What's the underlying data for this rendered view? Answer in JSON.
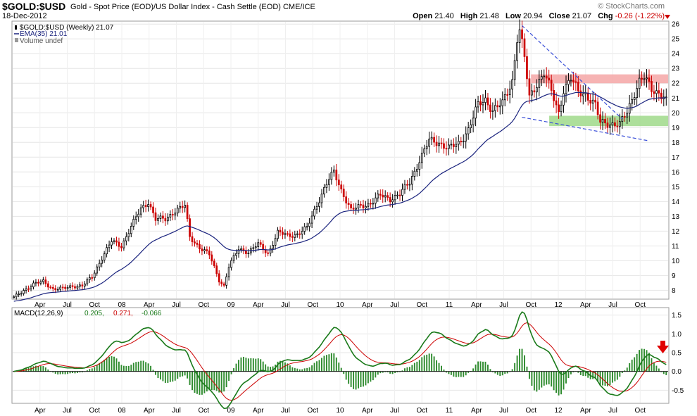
{
  "header": {
    "symbol": "$GOLD:$USD",
    "description": "Gold - Spot Price (EOD)/US Dollar Index - Cash Settle (EOD)  CME/ICE",
    "date": "18-Dec-2012",
    "brand": "© StockCharts.com",
    "open_label": "Open",
    "open": "21.40",
    "high_label": "High",
    "high": "21.48",
    "low_label": "Low",
    "low": "20.94",
    "close_label": "Close",
    "close": "21.07",
    "chg_label": "Chg",
    "chg": "-0.26 (-1.22%)"
  },
  "legend": {
    "price": "$GOLD:$USD (Weekly) 21.07",
    "ema": "EMA(35) 21.01",
    "volume": "Volume undef"
  },
  "macd_legend": {
    "label": "MACD(12,26,9)",
    "macd": "0.205,",
    "signal": "0.271,",
    "hist": "-0.066"
  },
  "colors": {
    "up": "#000000",
    "down": "#cc0000",
    "ema": "#1a237e",
    "macd": "#1a7a1a",
    "signal": "#cc0000",
    "hist": "#2e8b2e",
    "resistance_zone": "#f4a6a6",
    "support_zone": "#9fd98a",
    "trendline": "#3a4fd8",
    "arrow": "#e00000"
  },
  "chart_data": [
    {
      "type": "candlestick",
      "title": "$GOLD:$USD (Weekly)",
      "y_axis_side": "right",
      "ylim": [
        7.4,
        26.2
      ],
      "y_ticks": [
        8,
        9,
        10,
        11,
        12,
        13,
        14,
        15,
        16,
        17,
        18,
        19,
        20,
        21,
        22,
        23,
        24,
        25,
        26
      ],
      "x_tick_labels": [
        "Apr",
        "Jul",
        "Oct",
        "08",
        "Apr",
        "Jul",
        "Oct",
        "09",
        "Apr",
        "Jul",
        "Oct",
        "10",
        "Apr",
        "Jul",
        "Oct",
        "11",
        "Apr",
        "Jul",
        "Oct",
        "12",
        "Apr",
        "Jul",
        "Oct"
      ],
      "x_range": [
        "2007-01",
        "2012-12"
      ],
      "grid": true,
      "anchors": [
        [
          0,
          7.5
        ],
        [
          4,
          8.0
        ],
        [
          8,
          8.4
        ],
        [
          12,
          8.6
        ],
        [
          16,
          8.1
        ],
        [
          20,
          8.1
        ],
        [
          24,
          8.3
        ],
        [
          28,
          8.3
        ],
        [
          32,
          8.9
        ],
        [
          36,
          10.2
        ],
        [
          40,
          11.3
        ],
        [
          44,
          11.0
        ],
        [
          48,
          12.3
        ],
        [
          52,
          13.5
        ],
        [
          55,
          14.0
        ],
        [
          58,
          12.8
        ],
        [
          62,
          12.8
        ],
        [
          66,
          13.4
        ],
        [
          70,
          13.7
        ],
        [
          72,
          11.6
        ],
        [
          76,
          10.9
        ],
        [
          80,
          10.4
        ],
        [
          84,
          8.7
        ],
        [
          86,
          8.3
        ],
        [
          88,
          9.6
        ],
        [
          92,
          10.8
        ],
        [
          96,
          10.6
        ],
        [
          100,
          11.1
        ],
        [
          104,
          10.5
        ],
        [
          108,
          11.9
        ],
        [
          112,
          11.7
        ],
        [
          116,
          11.8
        ],
        [
          120,
          12.2
        ],
        [
          124,
          13.8
        ],
        [
          128,
          15.2
        ],
        [
          131,
          16.0
        ],
        [
          134,
          14.8
        ],
        [
          138,
          13.4
        ],
        [
          142,
          13.7
        ],
        [
          146,
          13.9
        ],
        [
          150,
          14.4
        ],
        [
          154,
          14.2
        ],
        [
          158,
          14.5
        ],
        [
          162,
          15.3
        ],
        [
          166,
          16.8
        ],
        [
          170,
          18.1
        ],
        [
          174,
          18.0
        ],
        [
          178,
          17.6
        ],
        [
          182,
          17.9
        ],
        [
          186,
          18.9
        ],
        [
          190,
          20.5
        ],
        [
          193,
          20.9
        ],
        [
          196,
          20.2
        ],
        [
          200,
          20.6
        ],
        [
          204,
          22.2
        ],
        [
          206,
          25.1
        ],
        [
          207,
          25.6
        ],
        [
          209,
          23.7
        ],
        [
          211,
          21.0
        ],
        [
          214,
          22.0
        ],
        [
          217,
          22.7
        ],
        [
          220,
          21.4
        ],
        [
          223,
          20.0
        ],
        [
          225,
          21.6
        ],
        [
          228,
          22.3
        ],
        [
          231,
          21.4
        ],
        [
          234,
          21.3
        ],
        [
          238,
          20.5
        ],
        [
          240,
          19.3
        ],
        [
          244,
          19.3
        ],
        [
          248,
          19.2
        ],
        [
          251,
          20.0
        ],
        [
          254,
          21.4
        ],
        [
          256,
          22.2
        ],
        [
          258,
          22.4
        ],
        [
          261,
          21.5
        ],
        [
          264,
          21.4
        ],
        [
          267,
          21.07
        ]
      ],
      "ema_label": "EMA(35)",
      "ema_last": 21.01,
      "resistance_zone": [
        22.0,
        22.6
      ],
      "support_zone": [
        19.1,
        19.8
      ],
      "trendline_upper": [
        [
          "2011-09",
          25.9
        ],
        [
          "2012-08",
          19.6
        ]
      ],
      "trendline_lower": [
        [
          "2011-09",
          19.7
        ],
        [
          "2012-11",
          18.1
        ]
      ]
    },
    {
      "type": "line",
      "title": "MACD(12,26,9)",
      "ylim": [
        -0.85,
        1.7
      ],
      "y_ticks": [
        -0.5,
        0.0,
        0.5,
        1.0,
        1.5
      ],
      "series": [
        {
          "name": "MACD(12,26,9)",
          "last": 0.205
        },
        {
          "name": "Signal",
          "last": 0.271
        },
        {
          "name": "Histogram",
          "last": -0.066
        }
      ]
    }
  ]
}
